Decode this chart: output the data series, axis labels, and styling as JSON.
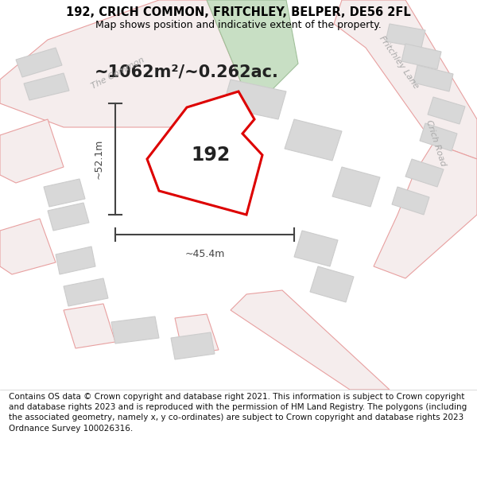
{
  "title": "192, CRICH COMMON, FRITCHLEY, BELPER, DE56 2FL",
  "subtitle": "Map shows position and indicative extent of the property.",
  "area_text": "~1062m²/~0.262ac.",
  "label_192": "192",
  "dim_width": "~45.4m",
  "dim_height": "~52.1m",
  "footer": "Contains OS data © Crown copyright and database right 2021. This information is subject to Crown copyright and database rights 2023 and is reproduced with the permission of HM Land Registry. The polygons (including the associated geometry, namely x, y co-ordinates) are subject to Crown copyright and database rights 2023 Ordnance Survey 100026316.",
  "bg_color": "#ffffff",
  "map_bg": "#ffffff",
  "road_stroke": "#e8a0a0",
  "road_fill": "#f5eded",
  "building_fill": "#d8d8d8",
  "building_stroke": "#cccccc",
  "green_fill": "#c8dfc4",
  "green_stroke": "#a0c09a",
  "plot_fill": "#ffffff",
  "plot_stroke": "#dd0000",
  "road_label_color": "#aaaaaa",
  "dim_color": "#444444",
  "title_color": "#000000",
  "footer_color": "#111111",
  "title_fontsize": 10.5,
  "subtitle_fontsize": 9,
  "area_fontsize": 15,
  "label_fontsize": 17,
  "dim_fontsize": 9,
  "road_label_fontsize": 8,
  "footer_fontsize": 7.5
}
